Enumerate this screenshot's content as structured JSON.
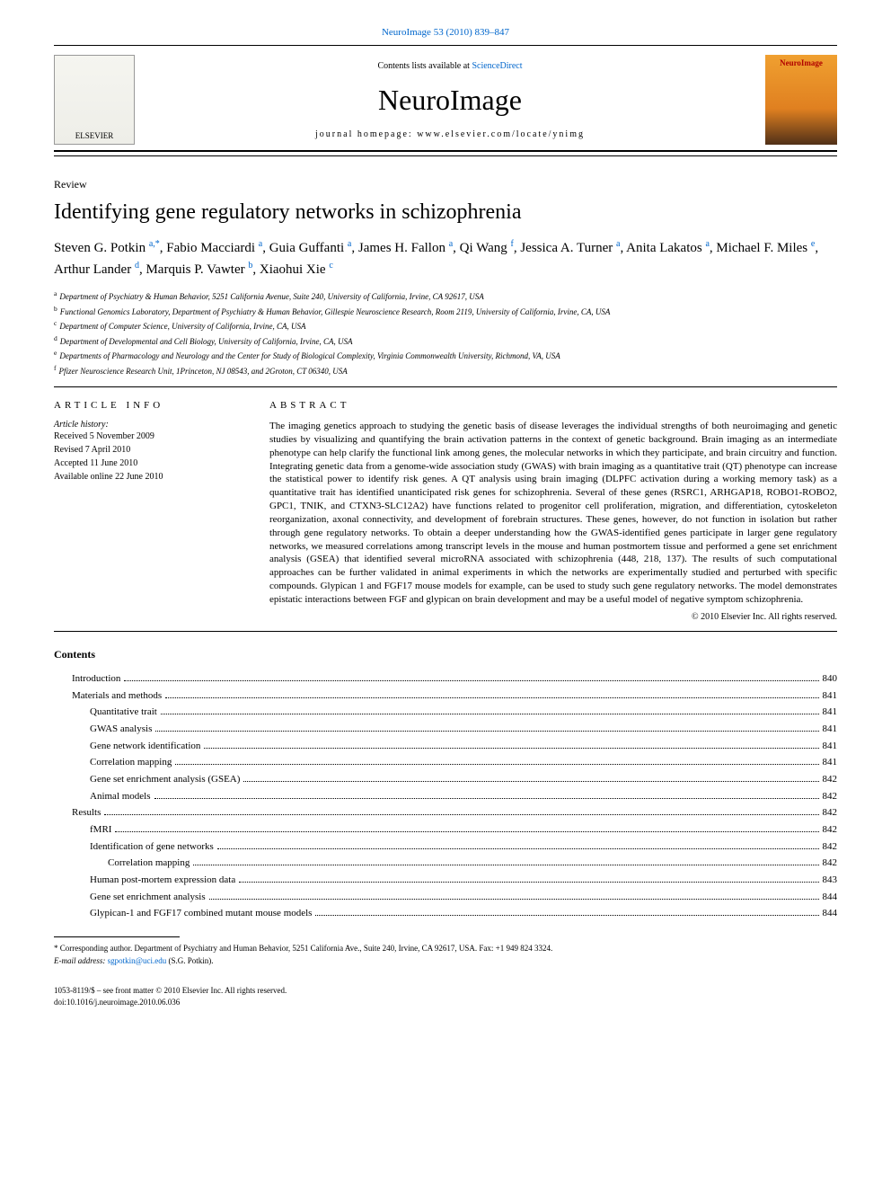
{
  "journal_ref": "NeuroImage 53 (2010) 839–847",
  "masthead": {
    "publisher": "ELSEVIER",
    "contents_prefix": "Contents lists available at ",
    "contents_link": "ScienceDirect",
    "journal_name": "NeuroImage",
    "homepage_label": "journal homepage: www.elsevier.com/locate/ynimg",
    "cover_label": "NeuroImage"
  },
  "article_type": "Review",
  "title": "Identifying gene regulatory networks in schizophrenia",
  "authors": [
    {
      "name": "Steven G. Potkin",
      "marks": "a,*"
    },
    {
      "name": "Fabio Macciardi",
      "marks": "a"
    },
    {
      "name": "Guia Guffanti",
      "marks": "a"
    },
    {
      "name": "James H. Fallon",
      "marks": "a"
    },
    {
      "name": "Qi Wang",
      "marks": "f"
    },
    {
      "name": "Jessica A. Turner",
      "marks": "a"
    },
    {
      "name": "Anita Lakatos",
      "marks": "a"
    },
    {
      "name": "Michael F. Miles",
      "marks": "e"
    },
    {
      "name": "Arthur Lander",
      "marks": "d"
    },
    {
      "name": "Marquis P. Vawter",
      "marks": "b"
    },
    {
      "name": "Xiaohui Xie",
      "marks": "c"
    }
  ],
  "affiliations": [
    {
      "key": "a",
      "text": "Department of Psychiatry & Human Behavior, 5251 California Avenue, Suite 240, University of California, Irvine, CA 92617, USA"
    },
    {
      "key": "b",
      "text": "Functional Genomics Laboratory, Department of Psychiatry & Human Behavior, Gillespie Neuroscience Research, Room 2119, University of California, Irvine, CA, USA"
    },
    {
      "key": "c",
      "text": "Department of Computer Science, University of California, Irvine, CA, USA"
    },
    {
      "key": "d",
      "text": "Department of Developmental and Cell Biology, University of California, Irvine, CA, USA"
    },
    {
      "key": "e",
      "text": "Departments of Pharmacology and Neurology and the Center for Study of Biological Complexity, Virginia Commonwealth University, Richmond, VA, USA"
    },
    {
      "key": "f",
      "text": "Pfizer Neuroscience Research Unit, 1Princeton, NJ 08543, and 2Groton, CT 06340, USA"
    }
  ],
  "info": {
    "heading": "ARTICLE INFO",
    "history_label": "Article history:",
    "items": [
      "Received 5 November 2009",
      "Revised 7 April 2010",
      "Accepted 11 June 2010",
      "Available online 22 June 2010"
    ]
  },
  "abstract": {
    "heading": "ABSTRACT",
    "text": "The imaging genetics approach to studying the genetic basis of disease leverages the individual strengths of both neuroimaging and genetic studies by visualizing and quantifying the brain activation patterns in the context of genetic background. Brain imaging as an intermediate phenotype can help clarify the functional link among genes, the molecular networks in which they participate, and brain circuitry and function. Integrating genetic data from a genome-wide association study (GWAS) with brain imaging as a quantitative trait (QT) phenotype can increase the statistical power to identify risk genes. A QT analysis using brain imaging (DLPFC activation during a working memory task) as a quantitative trait has identified unanticipated risk genes for schizophrenia. Several of these genes (RSRC1, ARHGAP18, ROBO1-ROBO2, GPC1, TNIK, and CTXN3-SLC12A2) have functions related to progenitor cell proliferation, migration, and differentiation, cytoskeleton reorganization, axonal connectivity, and development of forebrain structures. These genes, however, do not function in isolation but rather through gene regulatory networks. To obtain a deeper understanding how the GWAS-identified genes participate in larger gene regulatory networks, we measured correlations among transcript levels in the mouse and human postmortem tissue and performed a gene set enrichment analysis (GSEA) that identified several microRNA associated with schizophrenia (448, 218, 137). The results of such computational approaches can be further validated in animal experiments in which the networks are experimentally studied and perturbed with specific compounds. Glypican 1 and FGF17 mouse models for example, can be used to study such gene regulatory networks. The model demonstrates epistatic interactions between FGF and glypican on brain development and may be a useful model of negative symptom schizophrenia.",
    "copyright": "© 2010 Elsevier Inc. All rights reserved."
  },
  "contents_heading": "Contents",
  "toc": [
    {
      "label": "Introduction",
      "page": "840",
      "indent": 1
    },
    {
      "label": "Materials and methods",
      "page": "841",
      "indent": 1
    },
    {
      "label": "Quantitative trait",
      "page": "841",
      "indent": 2
    },
    {
      "label": "GWAS analysis",
      "page": "841",
      "indent": 2
    },
    {
      "label": "Gene network identification",
      "page": "841",
      "indent": 2
    },
    {
      "label": "Correlation mapping",
      "page": "841",
      "indent": 2
    },
    {
      "label": "Gene set enrichment analysis (GSEA)",
      "page": "842",
      "indent": 2
    },
    {
      "label": "Animal models",
      "page": "842",
      "indent": 2
    },
    {
      "label": "Results",
      "page": "842",
      "indent": 1
    },
    {
      "label": "fMRI",
      "page": "842",
      "indent": 2
    },
    {
      "label": "Identification of gene networks",
      "page": "842",
      "indent": 2
    },
    {
      "label": "Correlation mapping",
      "page": "842",
      "indent": 3
    },
    {
      "label": "Human post-mortem expression data",
      "page": "843",
      "indent": 2
    },
    {
      "label": "Gene set enrichment analysis",
      "page": "844",
      "indent": 2
    },
    {
      "label": "Glypican-1 and FGF17 combined mutant mouse models",
      "page": "844",
      "indent": 2
    }
  ],
  "footnote": {
    "corr": "* Corresponding author. Department of Psychiatry and Human Behavior, 5251 California Ave., Suite 240, Irvine, CA 92617, USA. Fax: +1 949 824 3324.",
    "email_label": "E-mail address: ",
    "email": "sgpotkin@uci.edu",
    "email_suffix": " (S.G. Potkin)."
  },
  "footer": {
    "rights": "1053-8119/$ – see front matter © 2010 Elsevier Inc. All rights reserved.",
    "doi": "doi:10.1016/j.neuroimage.2010.06.036"
  },
  "colors": {
    "link": "#0066cc",
    "text": "#000000",
    "background": "#ffffff"
  }
}
